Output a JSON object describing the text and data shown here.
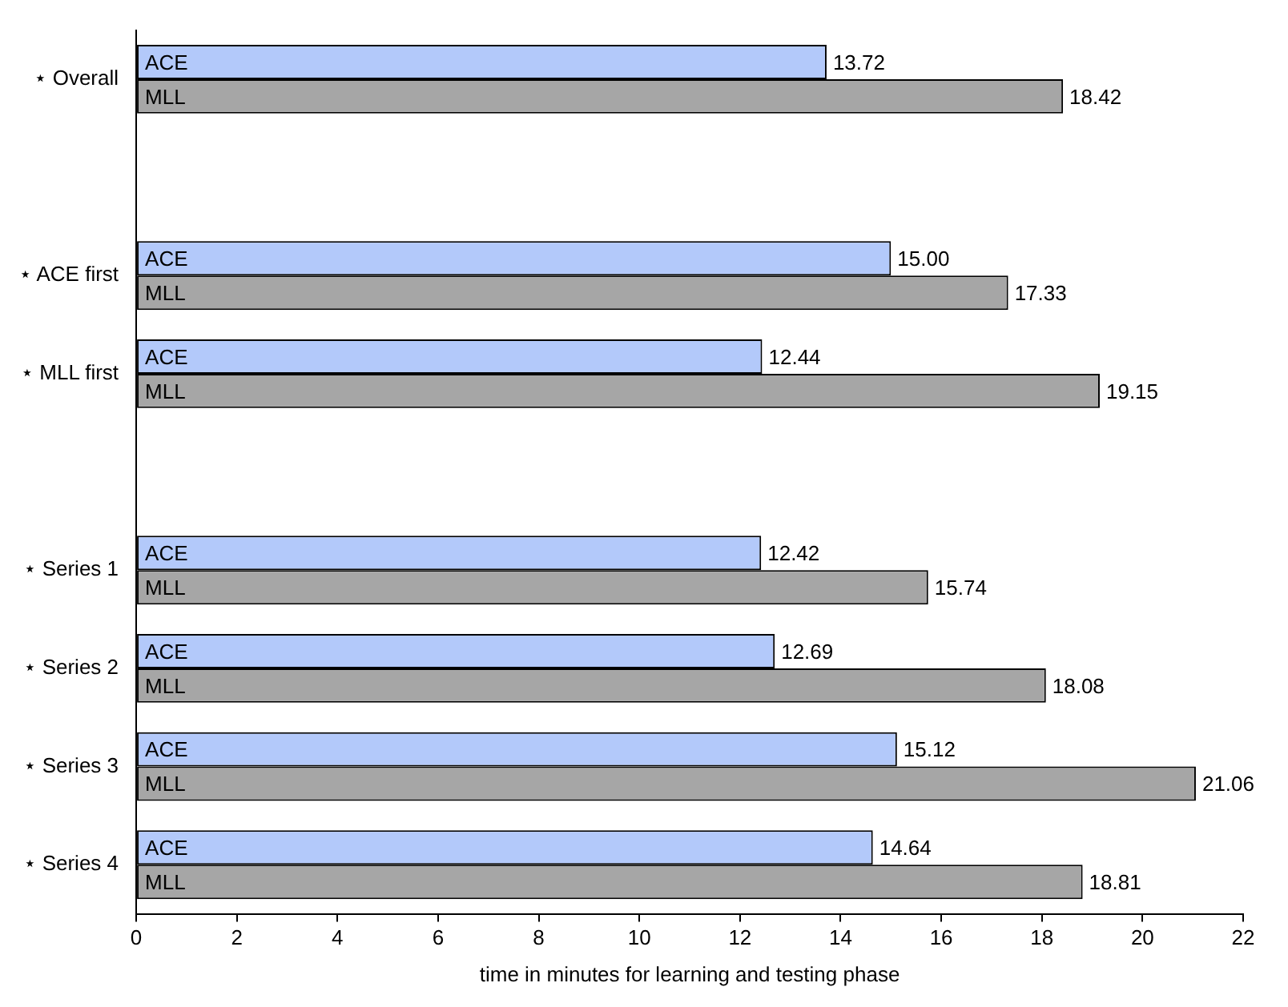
{
  "chart_data": {
    "type": "bar",
    "orientation": "horizontal",
    "xlabel": "time in minutes for learning and testing phase",
    "categories": [
      "⋆ Overall",
      null,
      "⋆ ACE first",
      "⋆ MLL first",
      null,
      "⋆ Series 1",
      "⋆ Series 2",
      "⋆ Series 3",
      "⋆ Series 4"
    ],
    "series": [
      {
        "name": "ACE",
        "color": "#b3c9fa",
        "values": [
          13.72,
          null,
          15.0,
          12.44,
          null,
          12.42,
          12.69,
          15.12,
          14.64
        ],
        "value_labels": [
          "13.72",
          null,
          "15.00",
          "12.44",
          null,
          "12.42",
          "12.69",
          "15.12",
          "14.64"
        ]
      },
      {
        "name": "MLL",
        "color": "#a6a6a6",
        "values": [
          18.42,
          null,
          17.33,
          19.15,
          null,
          15.74,
          18.08,
          21.06,
          18.81
        ],
        "value_labels": [
          "18.42",
          null,
          "17.33",
          "19.15",
          null,
          "15.74",
          "18.08",
          "21.06",
          "18.81"
        ]
      }
    ],
    "xlim": [
      0,
      22
    ],
    "xticks": [
      0,
      2,
      4,
      6,
      8,
      10,
      12,
      14,
      16,
      18,
      20,
      22
    ],
    "grid": false,
    "legend": false
  }
}
